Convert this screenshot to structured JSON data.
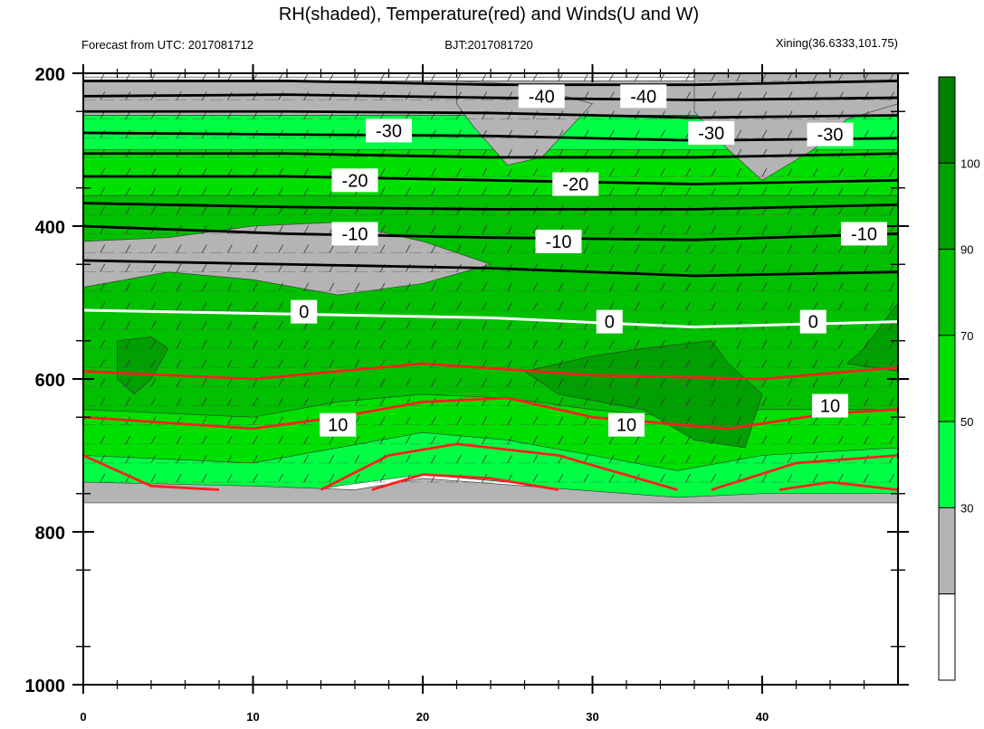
{
  "chart_data": {
    "type": "heatmap",
    "title": "RH(shaded), Temperature(red) and Winds(U and W)",
    "subtitle_left": "Forecast from UTC: 2017081712",
    "subtitle_center": "BJT:2017081720",
    "subtitle_right": "Xining(36.6333,101.75)",
    "x_ticks": [
      0,
      10,
      20,
      30,
      40
    ],
    "xlim": [
      0,
      48
    ],
    "y_ticks": [
      200,
      400,
      600,
      800,
      1000
    ],
    "ylim": [
      200,
      1000
    ],
    "y_reversed": true,
    "colorbar": {
      "levels": [
        30,
        50,
        70,
        90,
        100
      ],
      "colors": [
        "#ffffff",
        "#b4b4b4",
        "#00ff44",
        "#00e000",
        "#00c000",
        "#00a000",
        "#008000"
      ]
    },
    "rh_layers": [
      {
        "name": "rh-below-30",
        "color": "#ffffff",
        "top": [
          [
            0,
            205
          ],
          [
            48,
            205
          ]
        ],
        "bottom": [
          [
            0,
            235
          ],
          [
            48,
            235
          ]
        ]
      },
      {
        "name": "rh-30-50",
        "color": "#b4b4b4",
        "top": [
          [
            0,
            210
          ],
          [
            48,
            210
          ]
        ],
        "bottom": [
          [
            0,
            255
          ],
          [
            48,
            255
          ]
        ]
      },
      {
        "name": "rh-50-70",
        "color": "#00ff44",
        "top": [
          [
            0,
            255
          ],
          [
            48,
            255
          ]
        ],
        "bottom": [
          [
            0,
            760
          ],
          [
            10,
            760
          ],
          [
            15,
            740
          ],
          [
            20,
            725
          ],
          [
            25,
            735
          ],
          [
            30,
            750
          ],
          [
            35,
            760
          ],
          [
            40,
            755
          ],
          [
            48,
            760
          ]
        ]
      },
      {
        "name": "rh-70-90",
        "color": "#00e000",
        "top": [
          [
            0,
            300
          ],
          [
            48,
            300
          ]
        ],
        "bottom": [
          [
            0,
            700
          ],
          [
            10,
            710
          ],
          [
            15,
            690
          ],
          [
            20,
            670
          ],
          [
            25,
            680
          ],
          [
            30,
            700
          ],
          [
            35,
            720
          ],
          [
            40,
            700
          ],
          [
            48,
            690
          ]
        ]
      },
      {
        "name": "rh-90-100",
        "color": "#00c000",
        "top": [
          [
            0,
            360
          ],
          [
            48,
            360
          ]
        ],
        "bottom": [
          [
            0,
            640
          ],
          [
            10,
            650
          ],
          [
            15,
            630
          ],
          [
            20,
            620
          ],
          [
            25,
            625
          ],
          [
            30,
            640
          ],
          [
            35,
            650
          ],
          [
            40,
            640
          ],
          [
            48,
            640
          ]
        ]
      }
    ],
    "gray_patches": [
      {
        "points": [
          [
            0,
            420
          ],
          [
            5,
            415
          ],
          [
            10,
            400
          ],
          [
            15,
            395
          ],
          [
            20,
            420
          ],
          [
            24,
            450
          ],
          [
            20,
            475
          ],
          [
            15,
            490
          ],
          [
            10,
            470
          ],
          [
            5,
            460
          ],
          [
            0,
            480
          ]
        ]
      },
      {
        "points": [
          [
            22,
            210
          ],
          [
            26,
            215
          ],
          [
            30,
            240
          ],
          [
            27,
            310
          ],
          [
            25,
            320
          ],
          [
            23,
            270
          ],
          [
            22,
            240
          ]
        ]
      },
      {
        "points": [
          [
            36,
            200
          ],
          [
            48,
            200
          ],
          [
            48,
            240
          ],
          [
            45,
            260
          ],
          [
            43,
            300
          ],
          [
            40,
            340
          ],
          [
            38,
            300
          ],
          [
            36,
            250
          ]
        ]
      },
      {
        "points": [
          [
            0,
            735
          ],
          [
            10,
            740
          ],
          [
            16,
            745
          ],
          [
            20,
            730
          ],
          [
            26,
            740
          ],
          [
            35,
            755
          ],
          [
            40,
            750
          ],
          [
            48,
            750
          ],
          [
            48,
            762
          ],
          [
            0,
            762
          ]
        ]
      }
    ],
    "dark_green_patches": [
      {
        "points": [
          [
            2,
            550
          ],
          [
            4,
            545
          ],
          [
            5,
            560
          ],
          [
            4,
            600
          ],
          [
            3,
            620
          ],
          [
            2,
            600
          ]
        ]
      },
      {
        "points": [
          [
            26,
            590
          ],
          [
            30,
            570
          ],
          [
            33,
            560
          ],
          [
            37,
            550
          ],
          [
            38,
            580
          ],
          [
            40,
            620
          ],
          [
            39,
            690
          ],
          [
            36,
            680
          ],
          [
            33,
            640
          ],
          [
            28,
            620
          ]
        ]
      },
      {
        "points": [
          [
            46,
            560
          ],
          [
            48,
            500
          ],
          [
            48,
            590
          ],
          [
            45,
            580
          ]
        ]
      }
    ],
    "temperature_contours": [
      {
        "level": -40,
        "color": "#000000",
        "points": [
          [
            0,
            210
          ],
          [
            12,
            210
          ],
          [
            24,
            215
          ],
          [
            36,
            215
          ],
          [
            48,
            210
          ]
        ]
      },
      {
        "level": -40,
        "color": "#000000",
        "points": [
          [
            0,
            230
          ],
          [
            12,
            228
          ],
          [
            24,
            232
          ],
          [
            36,
            235
          ],
          [
            48,
            232
          ]
        ]
      },
      {
        "level": -30,
        "color": "#000000",
        "points": [
          [
            0,
            250
          ],
          [
            12,
            250
          ],
          [
            24,
            252
          ],
          [
            36,
            258
          ],
          [
            48,
            255
          ]
        ]
      },
      {
        "level": -30,
        "color": "#000000",
        "points": [
          [
            0,
            278
          ],
          [
            12,
            280
          ],
          [
            24,
            282
          ],
          [
            36,
            288
          ],
          [
            48,
            285
          ]
        ]
      },
      {
        "level": -30,
        "color": "#000000",
        "points": [
          [
            0,
            305
          ],
          [
            12,
            305
          ],
          [
            24,
            310
          ],
          [
            36,
            310
          ],
          [
            48,
            305
          ]
        ]
      },
      {
        "level": -20,
        "color": "#000000",
        "points": [
          [
            0,
            335
          ],
          [
            12,
            335
          ],
          [
            24,
            340
          ],
          [
            36,
            345
          ],
          [
            48,
            340
          ]
        ]
      },
      {
        "level": -20,
        "color": "#000000",
        "points": [
          [
            0,
            370
          ],
          [
            12,
            375
          ],
          [
            24,
            378
          ],
          [
            36,
            378
          ],
          [
            48,
            372
          ]
        ]
      },
      {
        "level": -10,
        "color": "#000000",
        "points": [
          [
            0,
            400
          ],
          [
            12,
            410
          ],
          [
            24,
            415
          ],
          [
            36,
            418
          ],
          [
            48,
            410
          ]
        ]
      },
      {
        "level": -10,
        "color": "#000000",
        "points": [
          [
            0,
            445
          ],
          [
            12,
            450
          ],
          [
            24,
            455
          ],
          [
            36,
            465
          ],
          [
            48,
            460
          ]
        ]
      },
      {
        "level": 0,
        "color": "#ffffff",
        "points": [
          [
            0,
            510
          ],
          [
            12,
            515
          ],
          [
            24,
            520
          ],
          [
            36,
            532
          ],
          [
            48,
            525
          ]
        ]
      },
      {
        "level": 10,
        "color": "#ff2020",
        "points": [
          [
            0,
            590
          ],
          [
            10,
            600
          ],
          [
            20,
            580
          ],
          [
            30,
            595
          ],
          [
            40,
            600
          ],
          [
            48,
            585
          ]
        ]
      },
      {
        "level": 10,
        "color": "#ff2020",
        "points": [
          [
            0,
            650
          ],
          [
            10,
            665
          ],
          [
            15,
            650
          ],
          [
            20,
            630
          ],
          [
            25,
            625
          ],
          [
            30,
            650
          ],
          [
            38,
            665
          ],
          [
            44,
            645
          ],
          [
            48,
            640
          ]
        ]
      },
      {
        "level": 10,
        "color": "#ff2020",
        "points": [
          [
            0,
            700
          ],
          [
            4,
            740
          ],
          [
            8,
            745
          ]
        ]
      },
      {
        "level": 10,
        "color": "#ff2020",
        "points": [
          [
            14,
            745
          ],
          [
            18,
            700
          ],
          [
            22,
            685
          ],
          [
            28,
            700
          ],
          [
            35,
            745
          ]
        ]
      },
      {
        "level": 10,
        "color": "#ff2020",
        "points": [
          [
            17,
            745
          ],
          [
            20,
            725
          ],
          [
            24,
            730
          ],
          [
            28,
            745
          ]
        ]
      },
      {
        "level": 10,
        "color": "#ff2020",
        "points": [
          [
            37,
            745
          ],
          [
            42,
            710
          ],
          [
            48,
            700
          ]
        ]
      },
      {
        "level": 10,
        "color": "#ff2020",
        "points": [
          [
            41,
            745
          ],
          [
            44,
            735
          ],
          [
            48,
            745
          ]
        ]
      }
    ],
    "contour_labels": [
      {
        "text": "-40",
        "x": 27,
        "y": 230
      },
      {
        "text": "-40",
        "x": 33,
        "y": 230
      },
      {
        "text": "-30",
        "x": 18,
        "y": 275
      },
      {
        "text": "-30",
        "x": 37,
        "y": 278
      },
      {
        "text": "-30",
        "x": 44,
        "y": 280
      },
      {
        "text": "-20",
        "x": 16,
        "y": 340
      },
      {
        "text": "-20",
        "x": 29,
        "y": 345
      },
      {
        "text": "-10",
        "x": 16,
        "y": 410
      },
      {
        "text": "-10",
        "x": 28,
        "y": 420
      },
      {
        "text": "-10",
        "x": 46,
        "y": 410
      },
      {
        "text": "0",
        "x": 13,
        "y": 512
      },
      {
        "text": "0",
        "x": 31,
        "y": 525
      },
      {
        "text": "0",
        "x": 43,
        "y": 525
      },
      {
        "text": "10",
        "x": 15,
        "y": 660
      },
      {
        "text": "10",
        "x": 32,
        "y": 660
      },
      {
        "text": "10",
        "x": 44,
        "y": 635
      }
    ]
  }
}
